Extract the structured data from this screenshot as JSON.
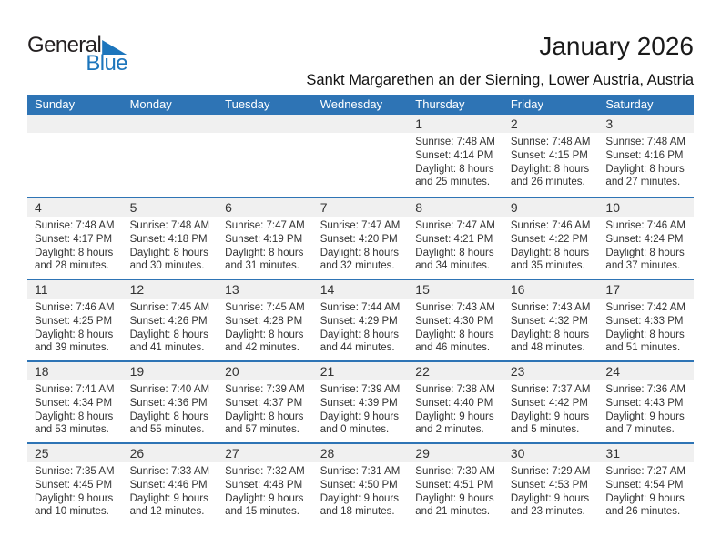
{
  "logo": {
    "part1": "General",
    "part2": "Blue"
  },
  "title": "January 2026",
  "subtitle": "Sankt Margarethen an der Sierning, Lower Austria, Austria",
  "colors": {
    "header_blue": "#2e74b5",
    "separator_blue": "#2e74b5",
    "logo_blue": "#1c75bc",
    "band_gray": "#f0f0f0"
  },
  "weekdays": [
    "Sunday",
    "Monday",
    "Tuesday",
    "Wednesday",
    "Thursday",
    "Friday",
    "Saturday"
  ],
  "weeks": [
    [
      {},
      {},
      {},
      {},
      {
        "day": "1",
        "sunrise": "Sunrise: 7:48 AM",
        "sunset": "Sunset: 4:14 PM",
        "daylight": "Daylight: 8 hours and 25 minutes."
      },
      {
        "day": "2",
        "sunrise": "Sunrise: 7:48 AM",
        "sunset": "Sunset: 4:15 PM",
        "daylight": "Daylight: 8 hours and 26 minutes."
      },
      {
        "day": "3",
        "sunrise": "Sunrise: 7:48 AM",
        "sunset": "Sunset: 4:16 PM",
        "daylight": "Daylight: 8 hours and 27 minutes."
      }
    ],
    [
      {
        "day": "4",
        "sunrise": "Sunrise: 7:48 AM",
        "sunset": "Sunset: 4:17 PM",
        "daylight": "Daylight: 8 hours and 28 minutes."
      },
      {
        "day": "5",
        "sunrise": "Sunrise: 7:48 AM",
        "sunset": "Sunset: 4:18 PM",
        "daylight": "Daylight: 8 hours and 30 minutes."
      },
      {
        "day": "6",
        "sunrise": "Sunrise: 7:47 AM",
        "sunset": "Sunset: 4:19 PM",
        "daylight": "Daylight: 8 hours and 31 minutes."
      },
      {
        "day": "7",
        "sunrise": "Sunrise: 7:47 AM",
        "sunset": "Sunset: 4:20 PM",
        "daylight": "Daylight: 8 hours and 32 minutes."
      },
      {
        "day": "8",
        "sunrise": "Sunrise: 7:47 AM",
        "sunset": "Sunset: 4:21 PM",
        "daylight": "Daylight: 8 hours and 34 minutes."
      },
      {
        "day": "9",
        "sunrise": "Sunrise: 7:46 AM",
        "sunset": "Sunset: 4:22 PM",
        "daylight": "Daylight: 8 hours and 35 minutes."
      },
      {
        "day": "10",
        "sunrise": "Sunrise: 7:46 AM",
        "sunset": "Sunset: 4:24 PM",
        "daylight": "Daylight: 8 hours and 37 minutes."
      }
    ],
    [
      {
        "day": "11",
        "sunrise": "Sunrise: 7:46 AM",
        "sunset": "Sunset: 4:25 PM",
        "daylight": "Daylight: 8 hours and 39 minutes."
      },
      {
        "day": "12",
        "sunrise": "Sunrise: 7:45 AM",
        "sunset": "Sunset: 4:26 PM",
        "daylight": "Daylight: 8 hours and 41 minutes."
      },
      {
        "day": "13",
        "sunrise": "Sunrise: 7:45 AM",
        "sunset": "Sunset: 4:28 PM",
        "daylight": "Daylight: 8 hours and 42 minutes."
      },
      {
        "day": "14",
        "sunrise": "Sunrise: 7:44 AM",
        "sunset": "Sunset: 4:29 PM",
        "daylight": "Daylight: 8 hours and 44 minutes."
      },
      {
        "day": "15",
        "sunrise": "Sunrise: 7:43 AM",
        "sunset": "Sunset: 4:30 PM",
        "daylight": "Daylight: 8 hours and 46 minutes."
      },
      {
        "day": "16",
        "sunrise": "Sunrise: 7:43 AM",
        "sunset": "Sunset: 4:32 PM",
        "daylight": "Daylight: 8 hours and 48 minutes."
      },
      {
        "day": "17",
        "sunrise": "Sunrise: 7:42 AM",
        "sunset": "Sunset: 4:33 PM",
        "daylight": "Daylight: 8 hours and 51 minutes."
      }
    ],
    [
      {
        "day": "18",
        "sunrise": "Sunrise: 7:41 AM",
        "sunset": "Sunset: 4:34 PM",
        "daylight": "Daylight: 8 hours and 53 minutes."
      },
      {
        "day": "19",
        "sunrise": "Sunrise: 7:40 AM",
        "sunset": "Sunset: 4:36 PM",
        "daylight": "Daylight: 8 hours and 55 minutes."
      },
      {
        "day": "20",
        "sunrise": "Sunrise: 7:39 AM",
        "sunset": "Sunset: 4:37 PM",
        "daylight": "Daylight: 8 hours and 57 minutes."
      },
      {
        "day": "21",
        "sunrise": "Sunrise: 7:39 AM",
        "sunset": "Sunset: 4:39 PM",
        "daylight": "Daylight: 9 hours and 0 minutes."
      },
      {
        "day": "22",
        "sunrise": "Sunrise: 7:38 AM",
        "sunset": "Sunset: 4:40 PM",
        "daylight": "Daylight: 9 hours and 2 minutes."
      },
      {
        "day": "23",
        "sunrise": "Sunrise: 7:37 AM",
        "sunset": "Sunset: 4:42 PM",
        "daylight": "Daylight: 9 hours and 5 minutes."
      },
      {
        "day": "24",
        "sunrise": "Sunrise: 7:36 AM",
        "sunset": "Sunset: 4:43 PM",
        "daylight": "Daylight: 9 hours and 7 minutes."
      }
    ],
    [
      {
        "day": "25",
        "sunrise": "Sunrise: 7:35 AM",
        "sunset": "Sunset: 4:45 PM",
        "daylight": "Daylight: 9 hours and 10 minutes."
      },
      {
        "day": "26",
        "sunrise": "Sunrise: 7:33 AM",
        "sunset": "Sunset: 4:46 PM",
        "daylight": "Daylight: 9 hours and 12 minutes."
      },
      {
        "day": "27",
        "sunrise": "Sunrise: 7:32 AM",
        "sunset": "Sunset: 4:48 PM",
        "daylight": "Daylight: 9 hours and 15 minutes."
      },
      {
        "day": "28",
        "sunrise": "Sunrise: 7:31 AM",
        "sunset": "Sunset: 4:50 PM",
        "daylight": "Daylight: 9 hours and 18 minutes."
      },
      {
        "day": "29",
        "sunrise": "Sunrise: 7:30 AM",
        "sunset": "Sunset: 4:51 PM",
        "daylight": "Daylight: 9 hours and 21 minutes."
      },
      {
        "day": "30",
        "sunrise": "Sunrise: 7:29 AM",
        "sunset": "Sunset: 4:53 PM",
        "daylight": "Daylight: 9 hours and 23 minutes."
      },
      {
        "day": "31",
        "sunrise": "Sunrise: 7:27 AM",
        "sunset": "Sunset: 4:54 PM",
        "daylight": "Daylight: 9 hours and 26 minutes."
      }
    ]
  ]
}
